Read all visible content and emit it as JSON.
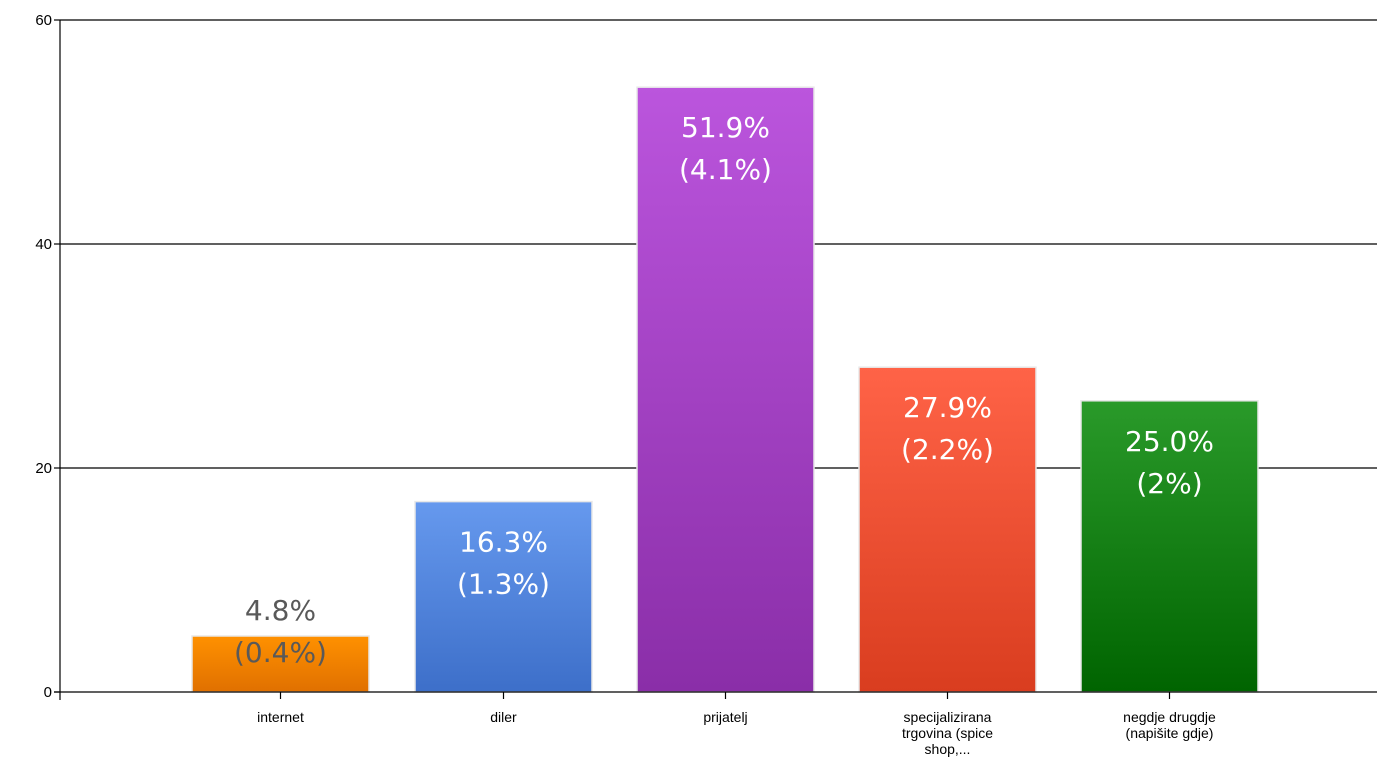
{
  "chart_data": {
    "type": "bar",
    "title": "",
    "xlabel": "",
    "ylabel": "",
    "ylim": [
      0,
      60
    ],
    "yticks": [
      0,
      20,
      40,
      60
    ],
    "grid": true,
    "categories": [
      [
        "internet"
      ],
      [
        "diler"
      ],
      [
        "prijatelj"
      ],
      [
        "specijalizirana",
        "trgovina (spice",
        "shop,..."
      ],
      [
        "negdje drugdje",
        "(napišite gdje)"
      ]
    ],
    "values": [
      5,
      17,
      54,
      29,
      26
    ],
    "bar_colors": [
      [
        "#ff9100",
        "#e07000"
      ],
      [
        "#6699ee",
        "#3d6fc9"
      ],
      [
        "#bb55dd",
        "#8a2ea8"
      ],
      [
        "#ff6347",
        "#d93d1f"
      ],
      [
        "#2a9a2a",
        "#006400"
      ]
    ],
    "data_labels": [
      [
        "4.8%",
        "(0.4%)"
      ],
      [
        "16.3%",
        "(1.3%)"
      ],
      [
        "51.9%",
        "(4.1%)"
      ],
      [
        "27.9%",
        "(2.2%)"
      ],
      [
        "25.0%",
        "(2%)"
      ]
    ],
    "data_label_colors": [
      "#595959",
      "#ffffff",
      "#ffffff",
      "#ffffff",
      "#ffffff"
    ]
  }
}
